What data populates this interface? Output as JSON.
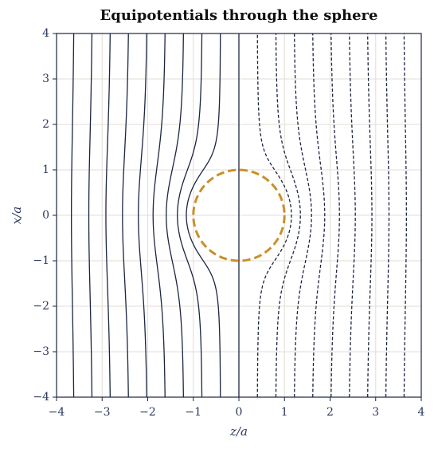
{
  "chart_data": {
    "type": "contour",
    "title": "Equipotentials through the sphere",
    "xlabel": "z/a",
    "ylabel": "x/a",
    "xlim": [
      -4,
      4
    ],
    "ylim": [
      -4,
      4
    ],
    "xticks": [
      {
        "value": -4,
        "label": "−4"
      },
      {
        "value": -3,
        "label": "−3"
      },
      {
        "value": -2,
        "label": "−2"
      },
      {
        "value": -1,
        "label": "−1"
      },
      0,
      1,
      2,
      3,
      4
    ],
    "yticks": [
      {
        "value": -4,
        "label": "−4"
      },
      {
        "value": -3,
        "label": "−3"
      },
      {
        "value": -2,
        "label": "−2"
      },
      {
        "value": -1,
        "label": "−1"
      },
      0,
      1,
      2,
      3,
      4
    ],
    "grid": true,
    "contours": {
      "levels": [
        -3.6,
        -3.2,
        -2.8,
        -2.4,
        -2.0,
        -1.6,
        -1.2,
        -0.8,
        -0.4,
        0,
        0.4,
        0.8,
        1.2,
        1.6,
        2.0,
        2.4,
        2.8,
        3.2,
        3.6
      ],
      "color": "#1c2541",
      "negative_linestyle": "dashed"
    },
    "sphere": {
      "radius": 1,
      "color": "#c8902a",
      "linestyle": "dashed"
    }
  }
}
